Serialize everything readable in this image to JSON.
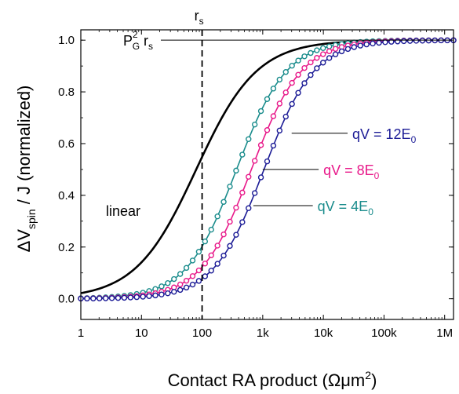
{
  "chart_data": {
    "type": "line",
    "xscale": "log",
    "xlim": [
      1,
      1400000
    ],
    "ylim": [
      -0.08,
      1.04
    ],
    "xticks": [
      1,
      10,
      100,
      1000,
      10000,
      100000,
      1000000
    ],
    "xtick_labels": [
      "1",
      "10",
      "100",
      "1k",
      "10k",
      "100k",
      "1M"
    ],
    "yticks": [
      0.0,
      0.2,
      0.4,
      0.6,
      0.8,
      1.0
    ],
    "ytick_labels": [
      "0.0",
      "0.2",
      "0.4",
      "0.6",
      "0.8",
      "1.0"
    ],
    "xlabel_main": "Contact RA product (",
    "xlabel_units": "Ωμm",
    "xlabel_sup": "2",
    "xlabel_close": ")",
    "ylabel_delta": "ΔV",
    "ylabel_sub": "spin",
    "ylabel_rest": " / J  (normalized)",
    "rs_value": 100,
    "rs_label": "r",
    "rs_sub": "s",
    "pg_label": {
      "P": "P",
      "sub": "G",
      "sup": "2",
      "r": " r",
      "rsub": "s"
    },
    "series": [
      {
        "name": "linear",
        "color": "#000000",
        "markers": false,
        "x0": 80,
        "n": 0.87,
        "x": [
          1,
          3,
          10,
          30,
          100,
          300,
          1000,
          3000,
          10000,
          30000,
          100000,
          1000000
        ],
        "y": [
          0.02,
          0.05,
          0.15,
          0.34,
          0.57,
          0.82,
          0.93,
          0.97,
          0.99,
          1.0,
          1.0,
          1.0
        ]
      },
      {
        "name": "qV = 4E0",
        "label_main": "qV = 4E",
        "label_sub": "0",
        "color": "#1a8c8c",
        "markers": true,
        "x0": 370,
        "n": 1.05,
        "x": [
          1,
          10,
          100,
          300,
          1000,
          3000,
          10000,
          100000,
          1000000
        ],
        "y": [
          0.0,
          0.02,
          0.13,
          0.42,
          0.78,
          0.93,
          0.98,
          1.0,
          1.0
        ]
      },
      {
        "name": "qV = 8E0",
        "label_main": "qV = 8E",
        "label_sub": "0",
        "color": "#e8198a",
        "markers": true,
        "x0": 650,
        "n": 1.05,
        "x": [
          1,
          10,
          100,
          300,
          1000,
          3000,
          10000,
          100000,
          1000000
        ],
        "y": [
          0.0,
          0.01,
          0.07,
          0.27,
          0.61,
          0.86,
          0.96,
          0.99,
          1.0
        ]
      },
      {
        "name": "qV = 12E0",
        "label_main": "qV = 12E",
        "label_sub": "0",
        "color": "#1c1c96",
        "markers": true,
        "x0": 1050,
        "n": 1.05,
        "x": [
          1,
          10,
          100,
          300,
          1000,
          3000,
          10000,
          100000,
          1000000
        ],
        "y": [
          0.0,
          0.01,
          0.05,
          0.18,
          0.48,
          0.78,
          0.93,
          0.99,
          1.0
        ]
      }
    ],
    "annotations": [
      {
        "series": 3,
        "text_x": 30000,
        "text_y": 0.64,
        "line_from_x": 3000,
        "line_from_y": 0.64
      },
      {
        "series": 2,
        "text_x": 10000,
        "text_y": 0.5,
        "line_from_x": 1000,
        "line_from_y": 0.5
      },
      {
        "series": 1,
        "text_x": 8000,
        "text_y": 0.36,
        "line_from_x": 700,
        "line_from_y": 0.36
      }
    ],
    "linear_label": {
      "text": "linear",
      "x": 5,
      "y": 0.32
    },
    "grid": false,
    "legend": "none"
  }
}
